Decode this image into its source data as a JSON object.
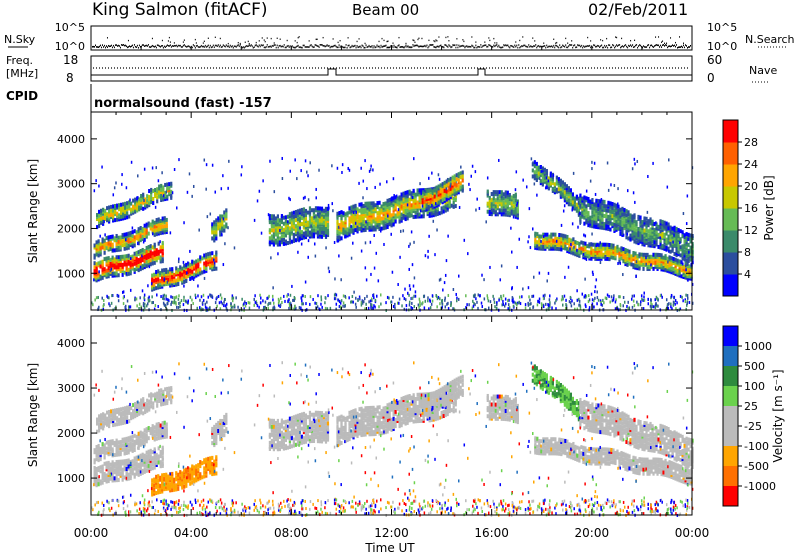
{
  "header": {
    "radar": "King Salmon (fitACF)",
    "beam": "Beam 00",
    "date": "02/Feb/2011"
  },
  "top_panels": {
    "nsky_label": "N.Sky",
    "nsearch_label": "N.Search",
    "noise_ticks": [
      "10^5",
      "10^0"
    ],
    "freq_label_1": "Freq.",
    "freq_label_2": "[MHz]",
    "freq_ticks": [
      "18",
      "8"
    ],
    "nave_label": "Nave",
    "nave_ticks": [
      "60",
      "0"
    ],
    "cpid_label": "CPID",
    "cpid_text": "normalsound (fast) -157"
  },
  "colors": {
    "power_scale": [
      "#0000ff",
      "#2b4e9e",
      "#3a8a6a",
      "#66bb55",
      "#c8c800",
      "#ffa500",
      "#ff6000",
      "#ff0000"
    ],
    "velocity_scale": [
      "#0000ff",
      "#1f6fbf",
      "#2e8b3e",
      "#6bd24d",
      "#bbbbbb",
      "#bbbbbb",
      "#ffa500",
      "#ff7000",
      "#ff0000"
    ]
  },
  "chart_data": [
    {
      "type": "heatmap",
      "name": "Power panel",
      "ylabel": "Slant Range [km]",
      "xlabel": "Time UT",
      "ylim": [
        180,
        4600
      ],
      "yticks": [
        "1000",
        "2000",
        "3000",
        "4000"
      ],
      "xticks": [
        "00:00",
        "04:00",
        "08:00",
        "12:00",
        "16:00",
        "20:00",
        "00:00"
      ],
      "xlim_hours": [
        0,
        24
      ],
      "colorbar": {
        "label": "Power [dB]",
        "ticks": [
          "4",
          "8",
          "12",
          "16",
          "20",
          "24",
          "28"
        ],
        "range": [
          0,
          30
        ]
      }
    },
    {
      "type": "heatmap",
      "name": "Velocity panel",
      "ylabel": "Slant Range [km]",
      "xlabel": "Time UT",
      "ylim": [
        180,
        4600
      ],
      "yticks": [
        "1000",
        "2000",
        "3000",
        "4000"
      ],
      "xticks": [
        "00:00",
        "04:00",
        "08:00",
        "12:00",
        "16:00",
        "20:00",
        "00:00"
      ],
      "xlim_hours": [
        0,
        24
      ],
      "colorbar": {
        "label": "Velocity [m s⁻¹]",
        "ticks": [
          "1000",
          "500",
          "100",
          "25",
          "-25",
          "-100",
          "-500",
          "-1000"
        ],
        "range": [
          -1200,
          1200
        ]
      }
    }
  ]
}
